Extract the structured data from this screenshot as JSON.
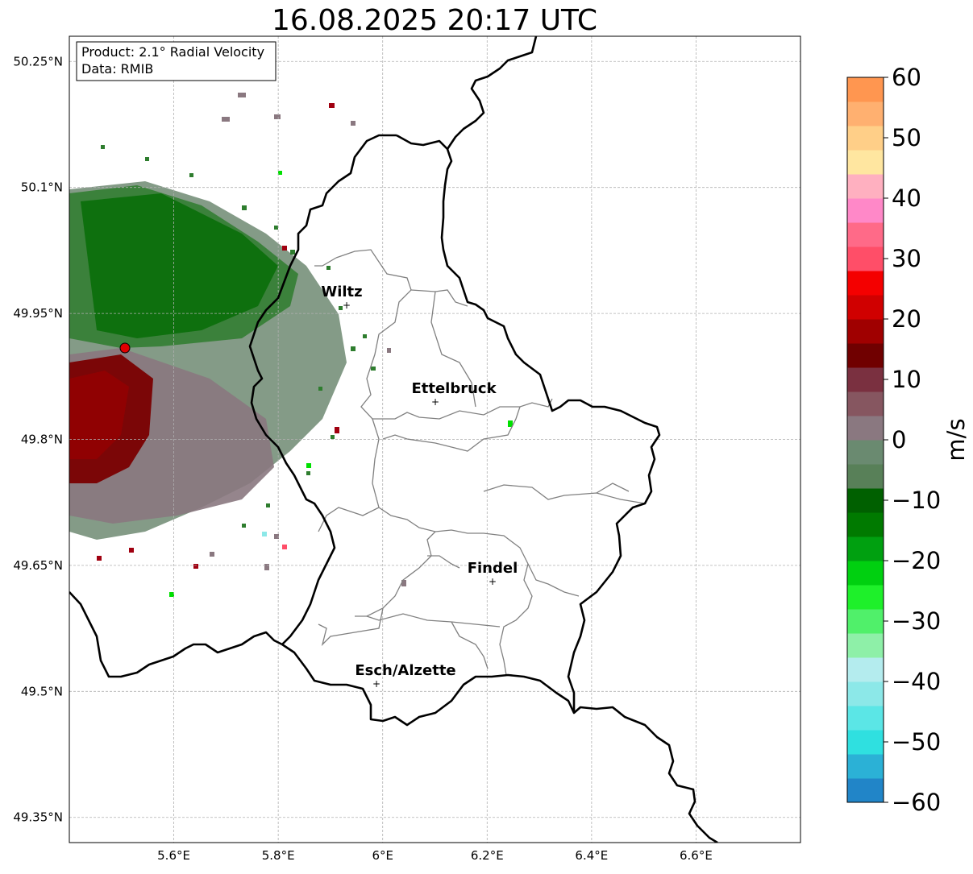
{
  "title": "16.08.2025 20:17 UTC",
  "info_box": {
    "product": "Product: 2.1° Radial Velocity",
    "data": "Data: RMIB"
  },
  "map": {
    "lon_range": [
      5.4,
      6.8
    ],
    "lat_range": [
      49.32,
      50.28
    ],
    "lon_ticks": [
      "5.6°E",
      "5.8°E",
      "6°E",
      "6.2°E",
      "6.4°E",
      "6.6°E"
    ],
    "lat_ticks": [
      "50.25°N",
      "50.1°N",
      "49.95°N",
      "49.8°N",
      "49.65°N",
      "49.5°N",
      "49.35°N"
    ],
    "grid": true
  },
  "radar_site": {
    "marker_color": "#e00000"
  },
  "cities": [
    {
      "name": "Wiltz",
      "lon": 5.93,
      "lat": 49.966
    },
    {
      "name": "Ettelbruck",
      "lon": 6.1,
      "lat": 49.849
    },
    {
      "name": "Findel",
      "lon": 6.21,
      "lat": 49.627
    },
    {
      "name": "Esch/Alzette",
      "lon": 5.99,
      "lat": 49.499
    }
  ],
  "colorbar": {
    "label": "m/s",
    "min": -60,
    "max": 60,
    "ticks": [
      "60",
      "50",
      "40",
      "30",
      "20",
      "10",
      "0",
      "−10",
      "−20",
      "−30",
      "−40",
      "−50",
      "−60"
    ],
    "stops": [
      "#2185c8",
      "#2bb1d6",
      "#2fe0e0",
      "#5be6e6",
      "#8ce8e8",
      "#b4ecee",
      "#8ef0a8",
      "#50f06a",
      "#1ef02a",
      "#00d010",
      "#00a010",
      "#007a00",
      "#006000",
      "#588058",
      "#6a8a70",
      "#8a7880",
      "#865660",
      "#7a3040",
      "#700000",
      "#a00000",
      "#d00000",
      "#f40000",
      "#ff4e68",
      "#ff6a88",
      "#ff88c8",
      "#ffb0c0",
      "#ffe6a0",
      "#ffcf88",
      "#ffb070",
      "#ff9650"
    ]
  }
}
